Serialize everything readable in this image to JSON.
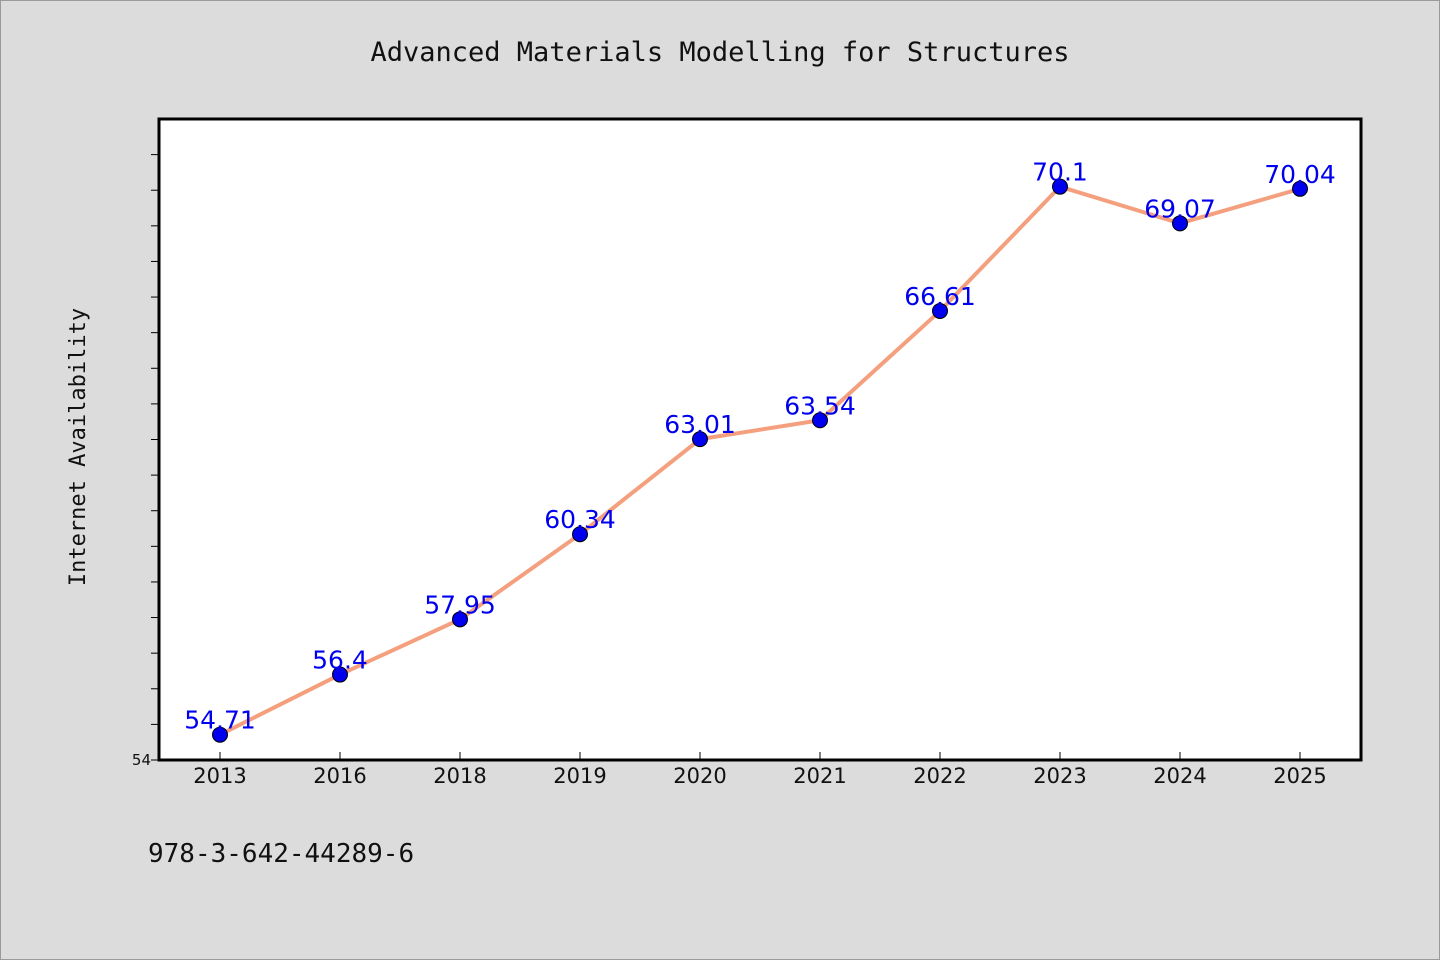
{
  "chart_data": {
    "type": "line",
    "title": "Advanced Materials Modelling for Structures",
    "xlabel": "",
    "ylabel": "Internet Availability",
    "categories": [
      "2013",
      "2016",
      "2018",
      "2019",
      "2020",
      "2021",
      "2022",
      "2023",
      "2024",
      "2025"
    ],
    "values": [
      54.71,
      56.4,
      57.95,
      60.34,
      63.01,
      63.54,
      66.61,
      70.1,
      69.07,
      70.04
    ],
    "data_labels": [
      "54.71",
      "56.4",
      "57.95",
      "60.34",
      "63.01",
      "63.54",
      "66.61",
      "70.1",
      "69.07",
      "70.04"
    ],
    "ylim": [
      54,
      72
    ],
    "y_tick_labels": [
      "54"
    ],
    "grid": false,
    "legend": "none",
    "line_color": "#f4a07e",
    "marker_color": "#0000ee",
    "label_color": "#0000ee"
  },
  "footer": {
    "isbn": "978-3-642-44289-6"
  }
}
